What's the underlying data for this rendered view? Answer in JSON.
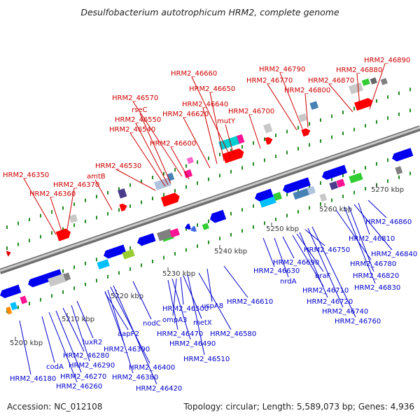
{
  "title": "Desulfobacterium autotrophicum HRM2, complete genome",
  "footer": {
    "accession": "Accession: NC_012108",
    "topology": "Topology: circular; Length: 5,589,073 bp; Genes: 4,936"
  },
  "colors": {
    "top_strand_label": "#cc0000",
    "bottom_strand_label": "#0000cc",
    "backbone": "#9a9a9a",
    "tick": "#228b22"
  },
  "scale_labels": [
    "5200 kbp",
    "5210 kbp",
    "5220 kbp",
    "5230 kbp",
    "5240 kbp",
    "5250 kbp",
    "5260 kbp",
    "5270 kbp"
  ],
  "top_labels": [
    "HRM2_46350",
    "HRM2_46360",
    "HRM2_46370",
    "amtB",
    "HRM2_46530",
    "HRM2_46540",
    "HRM2_46550",
    "rseC",
    "HRM2_46570",
    "HRM2_46600",
    "HRM2_46620",
    "HRM2_46640",
    "HRM2_46650",
    "HRM2_46660",
    "mutY",
    "HRM2_46700",
    "HRM2_46770",
    "HRM2_46790",
    "HRM2_46800",
    "HRM2_46870",
    "HRM2_46880",
    "HRM2_46890"
  ],
  "bottom_labels": [
    "HRM2_46180",
    "codA",
    "HRM2_46260",
    "HRM2_46270",
    "HRM2_46280",
    "HRM2_46290",
    "luxR2",
    "aapP2",
    "HRM2_46390",
    "HRM2_46380",
    "HRM2_46400",
    "HRM2_46420",
    "nodC",
    "HRM2_46470",
    "HRM2_46490",
    "ompA3",
    "HRM2_46500",
    "metX",
    "HRM2_46510",
    "HRM2_46580",
    "uspA8",
    "HRM2_46610",
    "HRM2_46630",
    "nrdA",
    "HRM2_46690",
    "HRM2_46710",
    "braF",
    "HRM2_46720",
    "HRM2_46750",
    "HRM2_46740",
    "HRM2_46760",
    "HRM2_46780",
    "HRM2_46830",
    "HRM2_46820",
    "HRM2_46840",
    "HRM2_46810",
    "HRM2_46860"
  ]
}
